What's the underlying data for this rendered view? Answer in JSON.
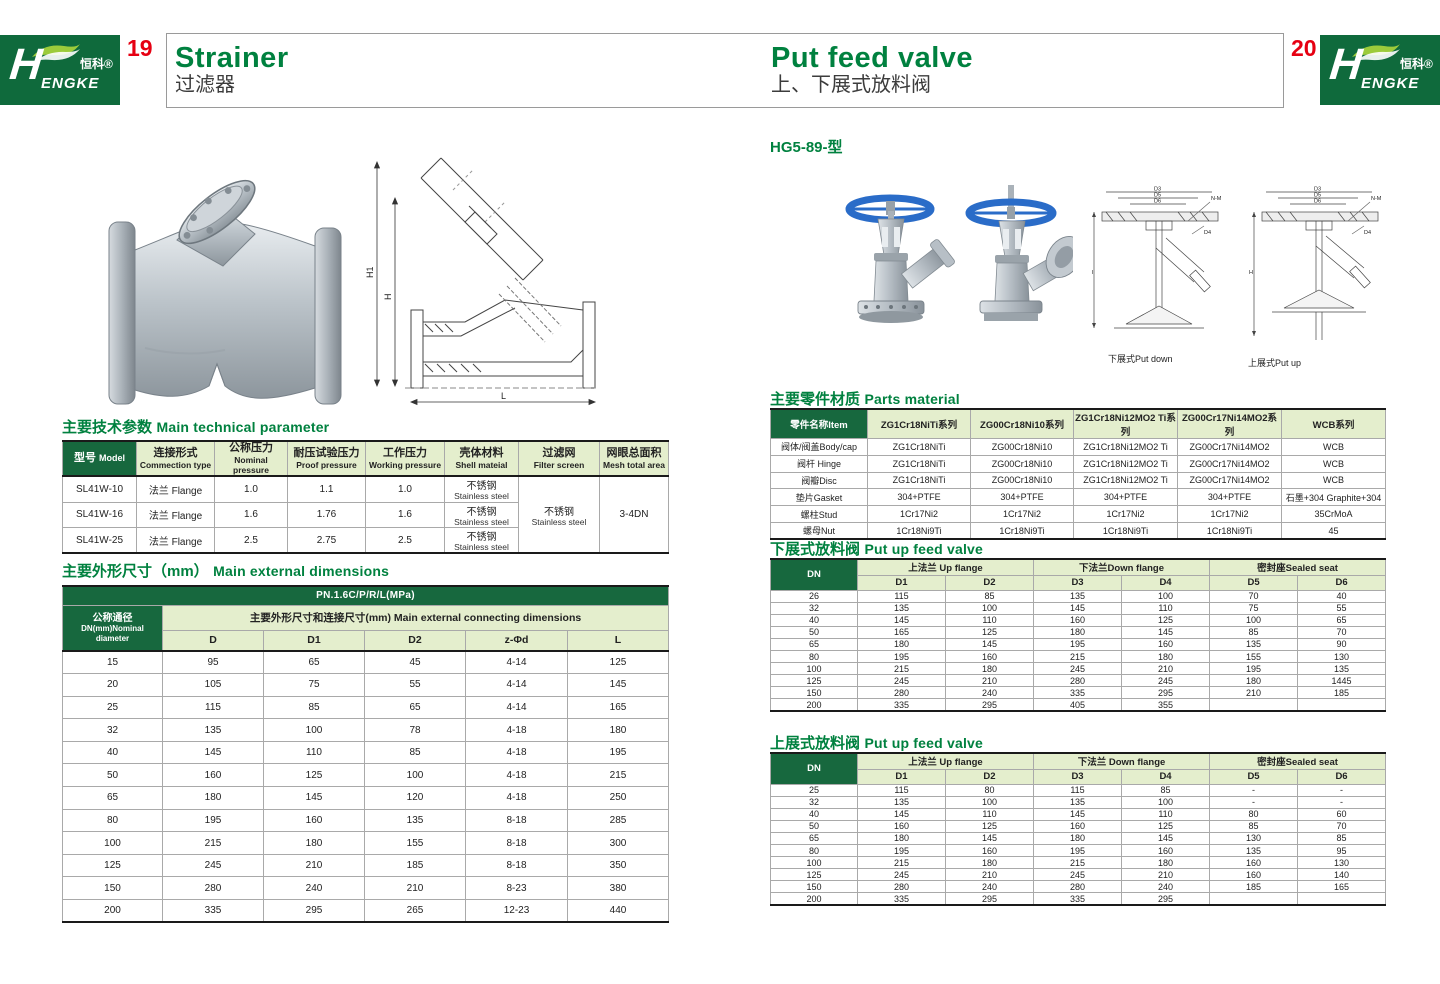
{
  "logo": {
    "h": "H",
    "engke": "ENGKE",
    "zh": "恒科®"
  },
  "left": {
    "page_number": "19",
    "title_en": "Strainer",
    "title_zh": "过滤器",
    "drawing_labels": {
      "h1": "H1",
      "h": "H",
      "l": "L"
    },
    "tech": {
      "title_zh": "主要技术参数",
      "title_en": "Main technical parameter",
      "headers": [
        {
          "zh": "型号",
          "en": "Model"
        },
        {
          "zh": "连接形式",
          "en": "Commection type"
        },
        {
          "zh": "公称压力",
          "en": "Nominal pressure"
        },
        {
          "zh": "耐压试验压力",
          "en": "Proof pressure"
        },
        {
          "zh": "工作压力",
          "en": "Working pressure"
        },
        {
          "zh": "壳体材料",
          "en": "Shell mateial"
        },
        {
          "zh": "过滤网",
          "en": "Filter screen"
        },
        {
          "zh": "网眼总面积",
          "en": "Mesh total area"
        }
      ],
      "rows": [
        {
          "model": "SL41W-10",
          "conn": "法兰 Flange",
          "nominal": "1.0",
          "proof": "1.1",
          "working": "1.0",
          "shell_zh": "不锈钢",
          "shell_en": "Stainless steel"
        },
        {
          "model": "SL41W-16",
          "conn": "法兰 Flange",
          "nominal": "1.6",
          "proof": "1.76",
          "working": "1.6",
          "shell_zh": "不锈钢",
          "shell_en": "Stainless steel"
        },
        {
          "model": "SL41W-25",
          "conn": "法兰 Flange",
          "nominal": "2.5",
          "proof": "2.75",
          "working": "2.5",
          "shell_zh": "不锈钢",
          "shell_en": "Stainless steel"
        }
      ],
      "filter_screen_zh": "不锈钢",
      "filter_screen_en": "Stainless steel",
      "mesh_total_area": "3-4DN"
    },
    "dims": {
      "title_zh": "主要外形尺寸（mm）",
      "title_en": "Main external dimensions",
      "pn": "PN.1.6C/P/R/L(MPa)",
      "dn_zh": "公称通径",
      "dn_en1": "DN(mm)Nominal",
      "dn_en2": "diameter",
      "group": "主要外形尺寸和连接尺寸(mm) Main external connecting dimensions",
      "cols": [
        "D",
        "D1",
        "D2",
        "z-Φd",
        "L"
      ],
      "rows": [
        [
          "15",
          "95",
          "65",
          "45",
          "4-14",
          "125"
        ],
        [
          "20",
          "105",
          "75",
          "55",
          "4-14",
          "145"
        ],
        [
          "25",
          "115",
          "85",
          "65",
          "4-14",
          "165"
        ],
        [
          "32",
          "135",
          "100",
          "78",
          "4-18",
          "180"
        ],
        [
          "40",
          "145",
          "110",
          "85",
          "4-18",
          "195"
        ],
        [
          "50",
          "160",
          "125",
          "100",
          "4-18",
          "215"
        ],
        [
          "65",
          "180",
          "145",
          "120",
          "4-18",
          "250"
        ],
        [
          "80",
          "195",
          "160",
          "135",
          "8-18",
          "285"
        ],
        [
          "100",
          "215",
          "180",
          "155",
          "8-18",
          "300"
        ],
        [
          "125",
          "245",
          "210",
          "185",
          "8-18",
          "350"
        ],
        [
          "150",
          "280",
          "240",
          "210",
          "8-23",
          "380"
        ],
        [
          "200",
          "335",
          "295",
          "265",
          "12-23",
          "440"
        ]
      ]
    }
  },
  "right": {
    "page_number": "20",
    "title_en": "Put feed valve",
    "title_zh": "上、下展式放料阀",
    "model_label": "HG5-89-型",
    "captions": {
      "down": "下展式Put down",
      "up": "上展式Put up"
    },
    "drawing_labels": {
      "d3": "D3",
      "d5": "D5",
      "d6": "D6",
      "nm": "N-M",
      "d4": "D4",
      "h": "H"
    },
    "materials": {
      "title_zh": "主要零件材质",
      "title_en": "Parts material",
      "headers": [
        "零件名称Item",
        "ZG1Cr18NiTi系列",
        "ZG00Cr18Ni10系列",
        "ZG1Cr18Ni12MO2 Ti系列",
        "ZG00Cr17Ni14MO2系列",
        "WCB系列"
      ],
      "rows": [
        [
          "阀体/阀盖Body/cap",
          "ZG1Cr18NiTi",
          "ZG00Cr18Ni10",
          "ZG1Cr18Ni12MO2 Ti",
          "ZG00Cr17Ni14MO2",
          "WCB"
        ],
        [
          "阀杆 Hinge",
          "ZG1Cr18NiTi",
          "ZG00Cr18Ni10",
          "ZG1Cr18Ni12MO2 Ti",
          "ZG00Cr17Ni14MO2",
          "WCB"
        ],
        [
          "阀瓣Disc",
          "ZG1Cr18NiTi",
          "ZG00Cr18Ni10",
          "ZG1Cr18Ni12MO2 Ti",
          "ZG00Cr17Ni14MO2",
          "WCB"
        ],
        [
          "垫片Gasket",
          "304+PTFE",
          "304+PTFE",
          "304+PTFE",
          "304+PTFE",
          "石墨+304 Graphite+304"
        ],
        [
          "螺柱Stud",
          "1Cr17Ni2",
          "1Cr17Ni2",
          "1Cr17Ni2",
          "1Cr17Ni2",
          "35CrMoA"
        ],
        [
          "螺母Nut",
          "1Cr18Ni9Ti",
          "1Cr18Ni9Ti",
          "1Cr18Ni9Ti",
          "1Cr18Ni9Ti",
          "45"
        ]
      ]
    },
    "down_table": {
      "title_zh": "下展式放料阀",
      "title_en": "Put up feed valve",
      "dn_label": "DN",
      "groups": [
        "上法兰 Up flange",
        "下法兰Down flange",
        "密封座Sealed seat"
      ],
      "cols": [
        "D1",
        "D2",
        "D3",
        "D4",
        "D5",
        "D6"
      ],
      "rows": [
        [
          "26",
          "115",
          "85",
          "135",
          "100",
          "70",
          "40"
        ],
        [
          "32",
          "135",
          "100",
          "145",
          "110",
          "75",
          "55"
        ],
        [
          "40",
          "145",
          "110",
          "160",
          "125",
          "100",
          "65"
        ],
        [
          "50",
          "165",
          "125",
          "180",
          "145",
          "85",
          "70"
        ],
        [
          "65",
          "180",
          "145",
          "195",
          "160",
          "135",
          "90"
        ],
        [
          "80",
          "195",
          "160",
          "215",
          "180",
          "155",
          "130"
        ],
        [
          "100",
          "215",
          "180",
          "245",
          "210",
          "195",
          "135"
        ],
        [
          "125",
          "245",
          "210",
          "280",
          "245",
          "180",
          "1445"
        ],
        [
          "150",
          "280",
          "240",
          "335",
          "295",
          "210",
          "185"
        ],
        [
          "200",
          "335",
          "295",
          "405",
          "355",
          "",
          ""
        ]
      ]
    },
    "up_table": {
      "title_zh": "上展式放料阀",
      "title_en": "Put up feed valve",
      "dn_label": "DN",
      "groups": [
        "上法兰 Up flange",
        "下法兰 Down flange",
        "密封座Sealed seat"
      ],
      "cols": [
        "D1",
        "D2",
        "D3",
        "D4",
        "D5",
        "D6"
      ],
      "rows": [
        [
          "25",
          "115",
          "80",
          "115",
          "85",
          "-",
          "-"
        ],
        [
          "32",
          "135",
          "100",
          "135",
          "100",
          "-",
          "-"
        ],
        [
          "40",
          "145",
          "110",
          "145",
          "110",
          "80",
          "60"
        ],
        [
          "50",
          "160",
          "125",
          "160",
          "125",
          "85",
          "70"
        ],
        [
          "65",
          "180",
          "145",
          "180",
          "145",
          "130",
          "85"
        ],
        [
          "80",
          "195",
          "160",
          "195",
          "160",
          "135",
          "95"
        ],
        [
          "100",
          "215",
          "180",
          "215",
          "180",
          "160",
          "130"
        ],
        [
          "125",
          "245",
          "210",
          "245",
          "210",
          "160",
          "140"
        ],
        [
          "150",
          "280",
          "240",
          "280",
          "240",
          "185",
          "165"
        ],
        [
          "200",
          "335",
          "295",
          "335",
          "295",
          "",
          ""
        ]
      ]
    }
  }
}
